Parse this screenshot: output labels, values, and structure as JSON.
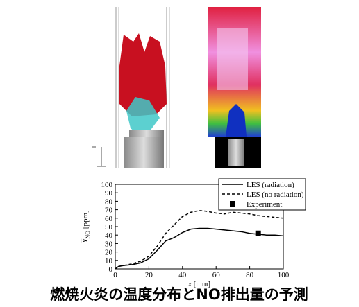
{
  "chart_data": {
    "type": "line",
    "title": "燃焼火炎の温度分布とNO排出量の予測",
    "xlabel": {
      "symbol": "x",
      "unit": "[mm]"
    },
    "ylabel": {
      "symbol": "Y",
      "subscript": "NO",
      "unit": "[ppm]"
    },
    "xlim": [
      0,
      100
    ],
    "xticks": [
      0,
      20,
      40,
      60,
      80,
      100
    ],
    "ylim": [
      0,
      100
    ],
    "yticks": [
      0,
      10,
      20,
      30,
      40,
      50,
      60,
      70,
      80,
      90,
      100
    ],
    "legend": "top-right",
    "series": [
      {
        "name": "LES (radiation)",
        "color": "#000000",
        "line_style": "solid",
        "x": [
          0,
          2,
          5,
          10,
          15,
          20,
          25,
          30,
          35,
          40,
          45,
          50,
          55,
          60,
          65,
          70,
          75,
          80,
          85,
          90,
          95,
          100
        ],
        "values": [
          0,
          3,
          4,
          5,
          7,
          12,
          22,
          33,
          37,
          43,
          47,
          48,
          48,
          47,
          46,
          45,
          44,
          42,
          41,
          40,
          40,
          39
        ]
      },
      {
        "name": "LES (no radiation)",
        "color": "#000000",
        "line_style": "dashed",
        "x": [
          0,
          2,
          5,
          10,
          15,
          20,
          25,
          30,
          35,
          40,
          45,
          50,
          55,
          60,
          65,
          70,
          75,
          80,
          85,
          90,
          95,
          100
        ],
        "values": [
          0,
          3,
          4,
          6,
          9,
          15,
          27,
          42,
          52,
          62,
          67,
          69,
          68,
          66,
          65,
          67,
          66,
          65,
          63,
          62,
          61,
          60
        ]
      },
      {
        "name": "Experiment",
        "color": "#000000",
        "line_style": "none",
        "marker": "square",
        "x": [
          85
        ],
        "values": [
          42
        ]
      }
    ]
  }
}
